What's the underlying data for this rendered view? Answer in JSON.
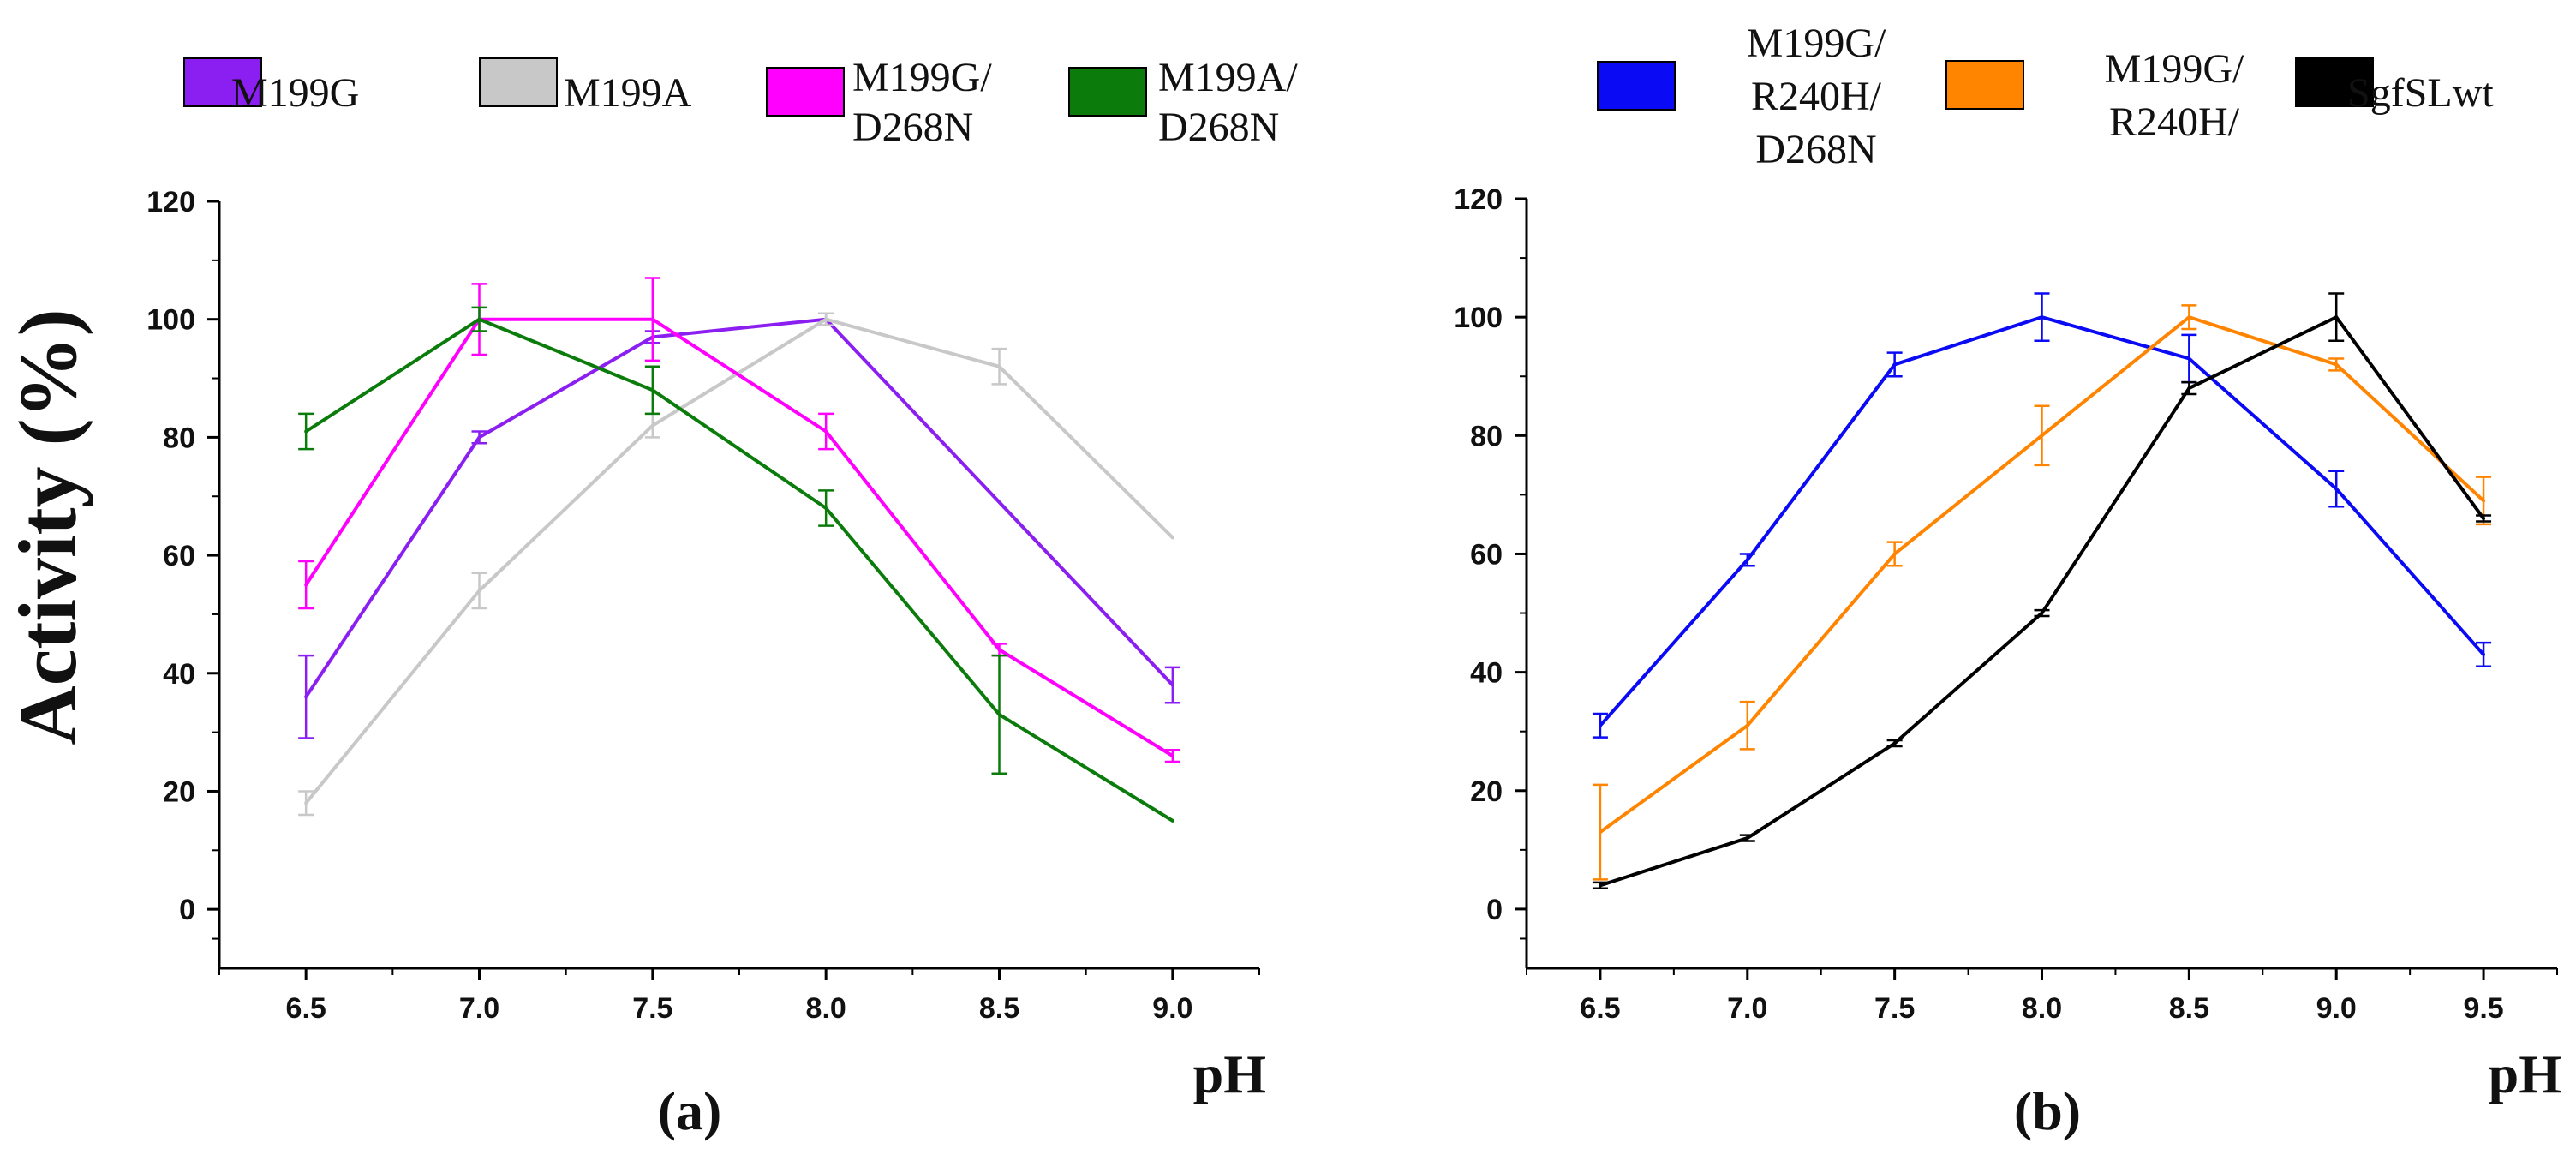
{
  "y_axis_label": "Activity (%)",
  "chart_data": [
    {
      "type": "line",
      "caption": "(a)",
      "xlabel": "pH",
      "ylabel": "Activity (%)",
      "x": [
        6.5,
        7.0,
        7.5,
        8.0,
        8.5,
        9.0
      ],
      "xticks": [
        "6.5",
        "7.0",
        "7.5",
        "8.0",
        "8.5",
        "9.0"
      ],
      "xlim": [
        6.25,
        9.25
      ],
      "ylim": [
        -10,
        120
      ],
      "yticks": [
        0,
        20,
        40,
        60,
        80,
        100,
        120
      ],
      "yticklabels": [
        "0",
        "20",
        "40",
        "60",
        "80",
        "100",
        "120"
      ],
      "legend_position": "top",
      "series": [
        {
          "name": "M199G",
          "legend_lines": [
            "M199G"
          ],
          "color": "#8B1FF2",
          "values": [
            36,
            80,
            97,
            100,
            null,
            38
          ],
          "errors": [
            7,
            1,
            1,
            1,
            null,
            3
          ]
        },
        {
          "name": "M199A",
          "legend_lines": [
            "M199A"
          ],
          "color": "#C8C8C8",
          "values": [
            18,
            54,
            82,
            100,
            92,
            63
          ],
          "errors": [
            2,
            3,
            2,
            1,
            3,
            null
          ]
        },
        {
          "name": "M199G/ D268N",
          "legend_lines": [
            "M199G/",
            "D268N"
          ],
          "color": "#FF00FF",
          "values": [
            55,
            100,
            100,
            81,
            44,
            26
          ],
          "errors": [
            4,
            6,
            7,
            3,
            1,
            1
          ]
        },
        {
          "name": "M199A/ D268N",
          "legend_lines": [
            "M199A/",
            "D268N"
          ],
          "color": "#0B7C0B",
          "values": [
            81,
            100,
            88,
            68,
            33,
            15
          ],
          "errors": [
            3,
            2,
            4,
            3,
            10,
            null
          ]
        }
      ]
    },
    {
      "type": "line",
      "caption": "(b)",
      "xlabel": "pH",
      "ylabel": "",
      "x": [
        6.5,
        7.0,
        7.5,
        8.0,
        8.5,
        9.0,
        9.5
      ],
      "xticks": [
        "6.5",
        "7.0",
        "7.5",
        "8.0",
        "8.5",
        "9.0",
        "9.5"
      ],
      "xlim": [
        6.25,
        9.75
      ],
      "ylim": [
        -10,
        120
      ],
      "yticks": [
        0,
        20,
        40,
        60,
        80,
        100,
        120
      ],
      "yticklabels": [
        "0",
        "20",
        "40",
        "60",
        "80",
        "100",
        "120"
      ],
      "legend_position": "top",
      "series": [
        {
          "name": "M199G/ R240H/ D268N",
          "legend_lines": [
            "M199G/",
            "R240H/",
            "D268N"
          ],
          "color": "#0A0AF5",
          "values": [
            31,
            59,
            92,
            100,
            93,
            71,
            43
          ],
          "errors": [
            2,
            1,
            2,
            4,
            4,
            3,
            2
          ]
        },
        {
          "name": "M199G/ R240H/",
          "legend_lines": [
            "M199G/",
            "R240H/"
          ],
          "color": "#FF8400",
          "values": [
            13,
            31,
            60,
            80,
            100,
            92,
            69
          ],
          "errors": [
            8,
            4,
            2,
            5,
            2,
            1,
            4
          ]
        },
        {
          "name": "SgfSLwt",
          "legend_lines": [
            "SgfSLwt"
          ],
          "color": "#000000",
          "values": [
            4,
            12,
            28,
            50,
            88,
            100,
            66
          ],
          "errors": [
            0.5,
            0.5,
            0.5,
            0.5,
            1,
            4,
            0.5
          ]
        }
      ]
    }
  ]
}
